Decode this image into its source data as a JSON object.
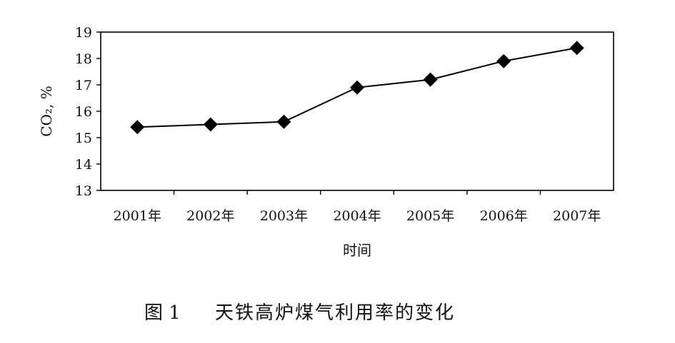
{
  "chart_data": {
    "type": "line",
    "categories": [
      "2001年",
      "2002年",
      "2003年",
      "2004年",
      "2005年",
      "2006年",
      "2007年"
    ],
    "series": [
      {
        "values": [
          15.4,
          15.5,
          15.6,
          16.9,
          17.2,
          17.9,
          18.4
        ]
      }
    ],
    "xlabel": "时间",
    "ylabel": "CO₂, %",
    "ylim": [
      13,
      19
    ],
    "yticks": [
      13,
      14,
      15,
      16,
      17,
      18,
      19
    ],
    "grid": false,
    "marker": "diamond",
    "line_color": "#000000"
  },
  "caption": {
    "label": "图 1",
    "text": "天铁高炉煤气利用率的变化"
  }
}
